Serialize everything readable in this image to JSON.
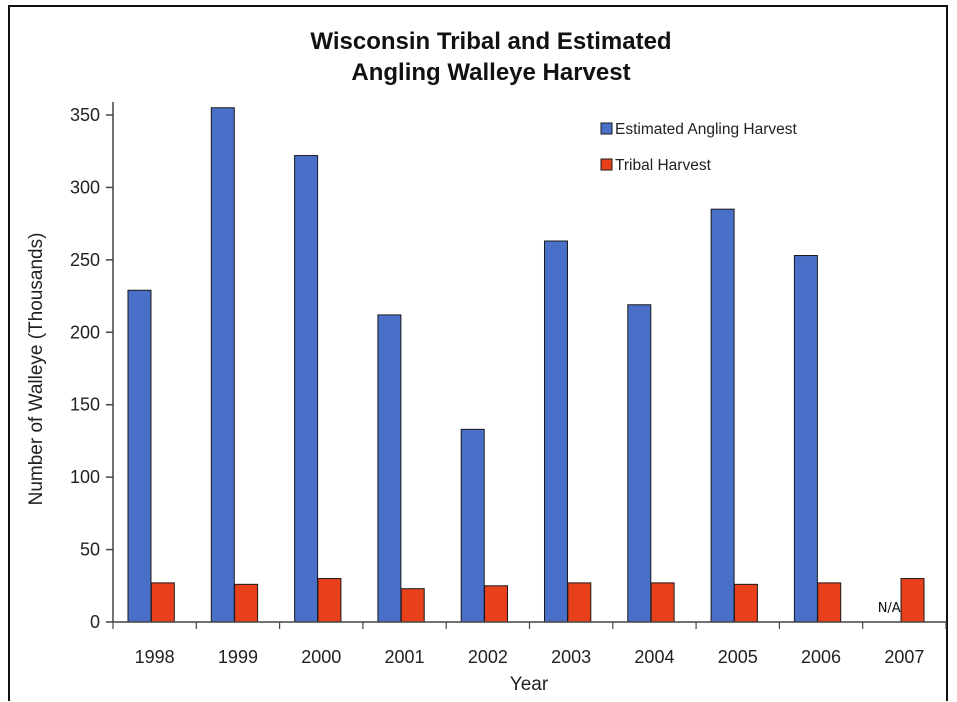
{
  "chart_data": {
    "type": "bar",
    "title_line1": "Wisconsin Tribal and Estimated",
    "title_line2": "Angling Walleye Harvest",
    "xlabel": "Year",
    "ylabel": "Number of Walleye (Thousands)",
    "ylim": [
      0,
      350
    ],
    "yticks": [
      0,
      50,
      100,
      150,
      200,
      250,
      300,
      350
    ],
    "categories": [
      "1998",
      "1999",
      "2000",
      "2001",
      "2002",
      "2003",
      "2004",
      "2005",
      "2006",
      "2007"
    ],
    "series": [
      {
        "name": "Estimated Angling Harvest",
        "color": "#4a6fc8",
        "values": [
          229,
          355,
          322,
          212,
          133,
          263,
          219,
          285,
          253,
          null
        ]
      },
      {
        "name": "Tribal Harvest",
        "color": "#e8401b",
        "values": [
          27,
          26,
          30,
          23,
          25,
          27,
          27,
          26,
          27,
          30
        ]
      }
    ],
    "annotations": [
      {
        "category": "2007",
        "series": "Estimated Angling Harvest",
        "text": "N/A"
      }
    ],
    "legend_position": "top-right",
    "grid": false
  }
}
